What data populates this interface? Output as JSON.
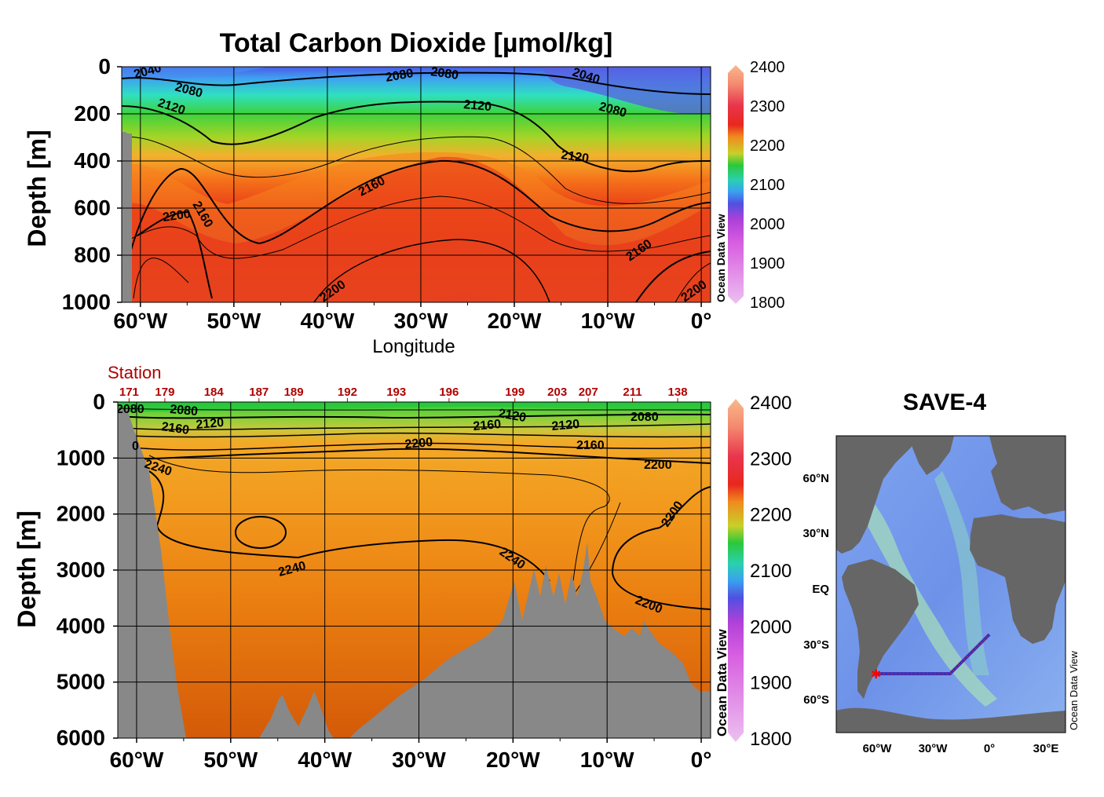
{
  "chart_data": [
    {
      "type": "heatmap",
      "title": "Total Carbon Dioxide [µmol/kg]",
      "xlabel": "Longitude",
      "ylabel": "Depth [m]",
      "x_ticks": [
        "60°W",
        "50°W",
        "40°W",
        "30°W",
        "20°W",
        "10°W",
        "0°"
      ],
      "x_values": [
        -60,
        -50,
        -40,
        -30,
        -20,
        -10,
        0
      ],
      "y_ticks": [
        0,
        200,
        400,
        600,
        800,
        1000
      ],
      "ylim": [
        1000,
        0
      ],
      "colorbar": {
        "ticks": [
          2400,
          2300,
          2200,
          2100,
          2000,
          1900,
          1800
        ],
        "range": [
          1800,
          2400
        ]
      },
      "contour_labels": [
        "2040",
        "2080",
        "2080",
        "2080",
        "2040",
        "2080",
        "2120",
        "2120",
        "2120",
        "2160",
        "2160",
        "2200",
        "2160",
        "2200",
        "2200"
      ],
      "watermark": "Ocean Data View"
    },
    {
      "type": "heatmap",
      "ylabel": "Depth [m]",
      "x_ticks": [
        "60°W",
        "50°W",
        "40°W",
        "30°W",
        "20°W",
        "10°W",
        "0°"
      ],
      "x_values": [
        -60,
        -50,
        -40,
        -30,
        -20,
        -10,
        0
      ],
      "y_ticks": [
        0,
        1000,
        2000,
        3000,
        4000,
        5000,
        6000
      ],
      "ylim": [
        6000,
        0
      ],
      "station_label": "Station",
      "stations": [
        {
          "id": "171",
          "lon": -60.8
        },
        {
          "id": "179",
          "lon": -57.0
        },
        {
          "id": "184",
          "lon": -51.8
        },
        {
          "id": "187",
          "lon": -47.0
        },
        {
          "id": "189",
          "lon": -43.3
        },
        {
          "id": "192",
          "lon": -37.6
        },
        {
          "id": "193",
          "lon": -32.4
        },
        {
          "id": "196",
          "lon": -26.8
        },
        {
          "id": "199",
          "lon": -19.8
        },
        {
          "id": "203",
          "lon": -15.3
        },
        {
          "id": "207",
          "lon": -12.0
        },
        {
          "id": "211",
          "lon": -7.3
        },
        {
          "id": "138",
          "lon": -2.5
        }
      ],
      "colorbar": {
        "ticks": [
          2400,
          2300,
          2200,
          2100,
          2000,
          1900,
          1800
        ],
        "range": [
          1800,
          2400
        ]
      },
      "contour_labels": [
        "2080",
        "2080",
        "2160",
        "2120",
        "2200",
        "2120",
        "2160",
        "2120",
        "2160",
        "2080",
        "2200",
        "2240",
        "2240",
        "2240",
        "2200",
        "2200",
        "0"
      ],
      "watermark": "Ocean Data View"
    },
    {
      "type": "map",
      "title": "SAVE-4",
      "x_ticks": [
        "60°W",
        "30°W",
        "0°",
        "30°E"
      ],
      "y_ticks": [
        "60°N",
        "30°N",
        "EQ",
        "30°S",
        "60°S"
      ],
      "watermark": "Ocean Data View"
    }
  ],
  "colors": {
    "land": "#888888",
    "section_line": "#3b2fb8",
    "station_text": "#b00000"
  }
}
